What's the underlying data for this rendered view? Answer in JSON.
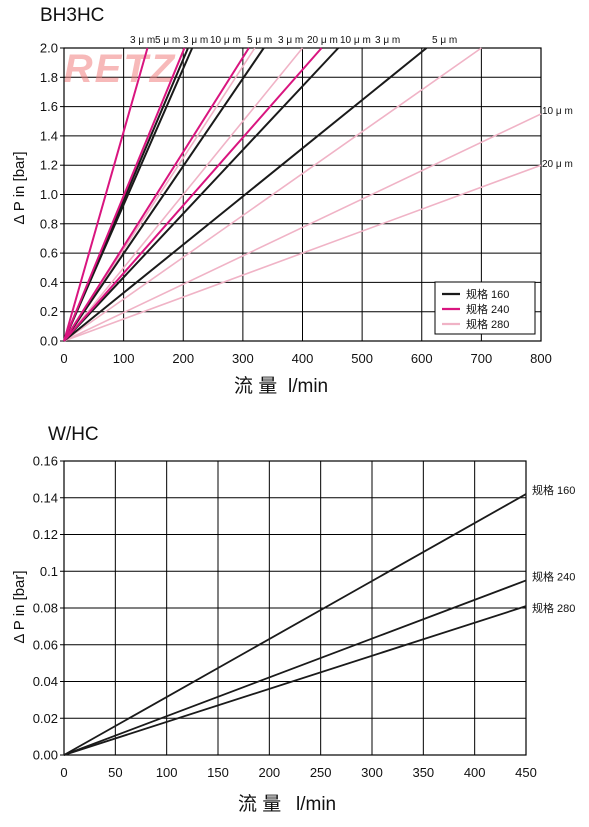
{
  "chart_data": [
    {
      "type": "line",
      "title": "BH3HC",
      "xlabel_main": "流  量",
      "xlabel_unit": "l/min",
      "ylabel": "Δ P in [bar]",
      "xlim": [
        0,
        800
      ],
      "ylim": [
        0,
        2.0
      ],
      "x_ticks": [
        "0",
        "100",
        "200",
        "300",
        "400",
        "500",
        "600",
        "700",
        "800"
      ],
      "y_ticks": [
        "0.0",
        "0.2",
        "0.4",
        "0.6",
        "0.8",
        "1.0",
        "1.2",
        "1.4",
        "1.6",
        "1.8",
        "2.0"
      ],
      "grid": true,
      "legend_position": "bottom-right",
      "watermark": "RETZ",
      "top_labels": [
        "3 μ m",
        "5 μ m",
        "3 μ m",
        "10 μ m",
        "5 μ m",
        "3 μ m",
        "20 μ m",
        "10 μ m",
        "3 μ m",
        "5 μ m"
      ],
      "series_styles": [
        {
          "name": "规格 160",
          "color": "#1a1a1a"
        },
        {
          "name": "规格 240",
          "color": "#d9157f"
        },
        {
          "name": "规格 280",
          "color": "#f0b3c6"
        }
      ],
      "series": [
        {
          "group": 0,
          "x": [
            0,
            208
          ],
          "y": [
            0,
            2.0
          ]
        },
        {
          "group": 0,
          "x": [
            0,
            215
          ],
          "y": [
            0,
            2.0
          ]
        },
        {
          "group": 0,
          "x": [
            0,
            335
          ],
          "y": [
            0,
            2.0
          ]
        },
        {
          "group": 0,
          "x": [
            0,
            460
          ],
          "y": [
            0,
            2.0
          ]
        },
        {
          "group": 0,
          "x": [
            0,
            608
          ],
          "y": [
            0,
            2.0
          ]
        },
        {
          "group": 1,
          "x": [
            0,
            140
          ],
          "y": [
            0,
            2.0
          ]
        },
        {
          "group": 1,
          "x": [
            0,
            202
          ],
          "y": [
            0,
            2.0
          ]
        },
        {
          "group": 1,
          "x": [
            0,
            310
          ],
          "y": [
            0,
            2.0
          ]
        },
        {
          "group": 1,
          "x": [
            0,
            432
          ],
          "y": [
            0,
            2.0
          ]
        },
        {
          "group": 2,
          "x": [
            0,
            208
          ],
          "y": [
            0,
            2.0
          ]
        },
        {
          "group": 2,
          "x": [
            0,
            320
          ],
          "y": [
            0,
            2.0
          ]
        },
        {
          "group": 2,
          "x": [
            0,
            400
          ],
          "y": [
            0,
            2.0
          ]
        },
        {
          "group": 2,
          "x": [
            0,
            700
          ],
          "y": [
            0,
            2.0
          ]
        },
        {
          "group": 2,
          "x": [
            0,
            800
          ],
          "y": [
            0,
            1.55
          ]
        },
        {
          "group": 2,
          "x": [
            0,
            800
          ],
          "y": [
            0,
            1.2
          ]
        }
      ],
      "side_labels": [
        {
          "text": "10 μ m",
          "y": 1.55
        },
        {
          "text": "20 μ m",
          "y": 1.2
        }
      ]
    },
    {
      "type": "line",
      "title": "W/HC",
      "xlabel_main": "流  量",
      "xlabel_unit": "l/min",
      "ylabel": "Δ P in [bar]",
      "xlim": [
        0,
        450
      ],
      "ylim": [
        0,
        0.16
      ],
      "x_ticks": [
        "0",
        "50",
        "100",
        "150",
        "200",
        "250",
        "300",
        "350",
        "400",
        "450"
      ],
      "y_ticks": [
        "0.00",
        "0.02",
        "0.04",
        "0.06",
        "0.08",
        "0.1",
        "0.12",
        "0.14",
        "0.16"
      ],
      "grid": true,
      "series": [
        {
          "name": "规格 160",
          "x": [
            0,
            450
          ],
          "y": [
            0,
            0.142
          ]
        },
        {
          "name": "规格 240",
          "x": [
            0,
            450
          ],
          "y": [
            0,
            0.095
          ]
        },
        {
          "name": "规格 280",
          "x": [
            0,
            450
          ],
          "y": [
            0,
            0.081
          ]
        }
      ]
    }
  ]
}
